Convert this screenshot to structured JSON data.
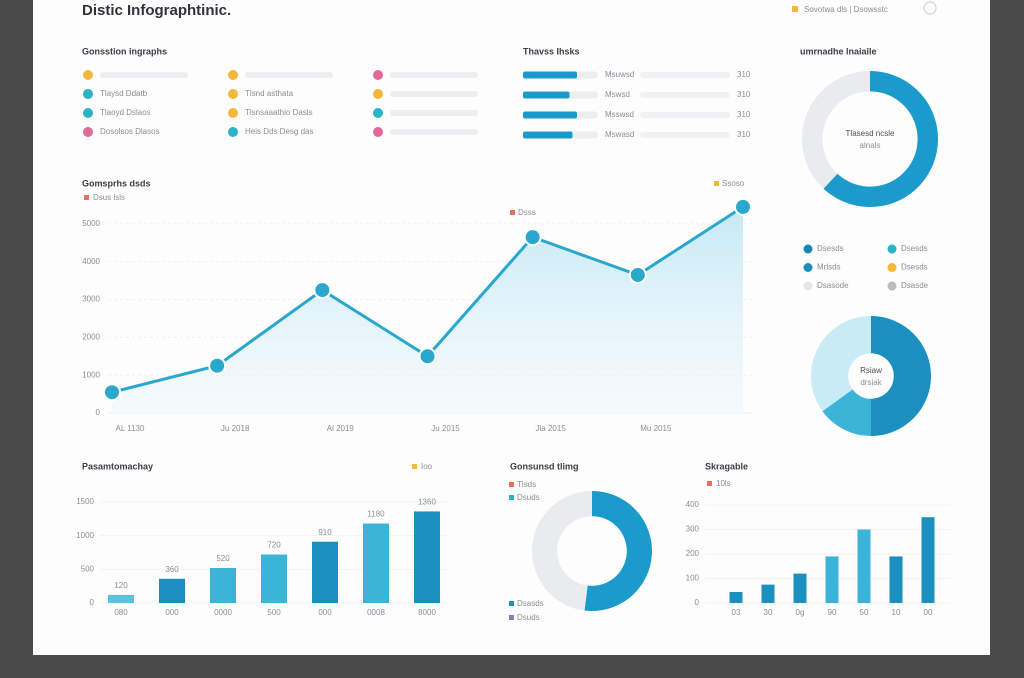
{
  "header": {
    "title": "Distic Infographtinic.",
    "legend": "Sovotwa dls | Dsowsstc"
  },
  "lists": {
    "title": "Gonsstion ingraphs",
    "items": [
      {
        "color": "#f5b73b"
      },
      {
        "label": "Tlaysd Ddatb",
        "color": "#2bb3c8"
      },
      {
        "label": "Tlaoyd Dslaos",
        "color": "#2bb3c8"
      },
      {
        "label": "Dosolsos Dlasos",
        "color": "#e2689a"
      },
      {
        "color": "#f5b73b"
      },
      {
        "label": "Tlsnd asthata",
        "color": "#f5b73b"
      },
      {
        "label": "Tlsnsaaathio Dasls",
        "color": "#f5b73b"
      },
      {
        "label": "Heis Dds Desg das",
        "color": "#2bb3c8"
      },
      {
        "color": "#e2689a"
      },
      {
        "color": "#f5b73b"
      },
      {
        "color": "#2bb3c8"
      },
      {
        "color": "#e2689a"
      }
    ]
  },
  "chart_data": [
    {
      "type": "progress",
      "title": "Thavss Ihsks",
      "categories": [
        "Msuwsd",
        "Mswsd",
        "Msswsd",
        "Mswasd"
      ],
      "tags": [
        "310",
        "310",
        "310",
        "310"
      ],
      "values": [
        72,
        62,
        72,
        66
      ],
      "xlim": [
        0,
        100
      ],
      "color": "#1a9bcc"
    },
    {
      "type": "line",
      "title": "Gomsprhs dsds",
      "series_name": "Dsus lsls",
      "series_color": "#e8705a",
      "annotations": [
        {
          "text": "Ssoso",
          "color": "#f5b73b"
        },
        {
          "text": "Dsss",
          "color": "#e8705a"
        }
      ],
      "categories": [
        "AL 1130",
        "Ju 2018",
        "Al 2019",
        "Ju 2015",
        "Jla 2015",
        "Mu 2015",
        null
      ],
      "values": [
        550,
        1250,
        3250,
        1500,
        4650,
        3650,
        5450
      ],
      "color": "#2aa7cc",
      "ylim": [
        0,
        5500
      ],
      "yticks": [
        0,
        1000,
        2000,
        3000,
        4000,
        5000
      ],
      "grid": true
    },
    {
      "type": "bar",
      "title": "Pasamtomachay",
      "legend": "Ioo",
      "categories": [
        "080",
        "000",
        "0000",
        "500",
        "000",
        "0008",
        "8000"
      ],
      "values": [
        120,
        360,
        520,
        720,
        910,
        1180,
        1360
      ],
      "colors": [
        "#5cc3df",
        "#1a8fc0",
        "#3bb4d8",
        "#3bb4d8",
        "#1a8fc0",
        "#3bb4d8",
        "#1a8fc0"
      ],
      "ylim": [
        0,
        1500
      ],
      "yticks": [
        0,
        500,
        1000,
        1500
      ],
      "grid": true,
      "show_values": true
    },
    {
      "type": "donut",
      "title": "umrnadhe lnaiaile",
      "center": [
        "Tlasesd ncsle",
        "alnals"
      ],
      "values": [
        62,
        38
      ],
      "colors": [
        "#1a9bcc",
        "#e8ecef"
      ],
      "inner": 0.7,
      "legend": [
        {
          "name": "Dsesds",
          "color": "#1787b7"
        },
        {
          "name": "Dsesds",
          "color": "#2bb3c8"
        },
        {
          "name": "Mrlsds",
          "color": "#1a8fc0"
        },
        {
          "name": "Dsesds",
          "color": "#f5b73b"
        },
        {
          "name": "Dsasode",
          "color": "#e4e6e8"
        },
        {
          "name": "Dsasde",
          "color": "#b8bcbf"
        }
      ]
    },
    {
      "type": "donut",
      "title": null,
      "center": [
        "Rsiaw",
        "drsiak"
      ],
      "values": [
        50,
        15,
        35
      ],
      "colors": [
        "#1a8fc0",
        "#3bb4d8",
        "#c9ebf5"
      ],
      "inner": 0.38
    },
    {
      "type": "donut",
      "title": "Gonsunsd tlimg",
      "values": [
        52,
        48
      ],
      "colors": [
        "#1a9bcc",
        "#e8ecef"
      ],
      "inner": 0.58,
      "legend": [
        {
          "name": "Tlsds",
          "color": "#e8705a"
        },
        {
          "name": "Dsuds",
          "color": "#2bb3c8"
        },
        {
          "name": "Dsasds",
          "color": "#1a8fc0"
        },
        {
          "name": "Dsuds",
          "color": "#8a7cc0"
        }
      ]
    },
    {
      "type": "bar",
      "title": "Skragable",
      "legend": "10ls",
      "legend_color": "#e8705a",
      "categories": [
        "03",
        "30",
        "0g",
        "90",
        "50",
        "10",
        "00"
      ],
      "values": [
        45,
        75,
        120,
        190,
        300,
        190,
        350
      ],
      "colors": [
        "#1a8fc0",
        "#1a8fc0",
        "#1a8fc0",
        "#3bb4d8",
        "#3bb4d8",
        "#1a8fc0",
        "#1a8fc0"
      ],
      "ylim": [
        0,
        400
      ],
      "yticks": [
        0,
        100,
        200,
        300,
        400
      ],
      "grid": true
    }
  ]
}
